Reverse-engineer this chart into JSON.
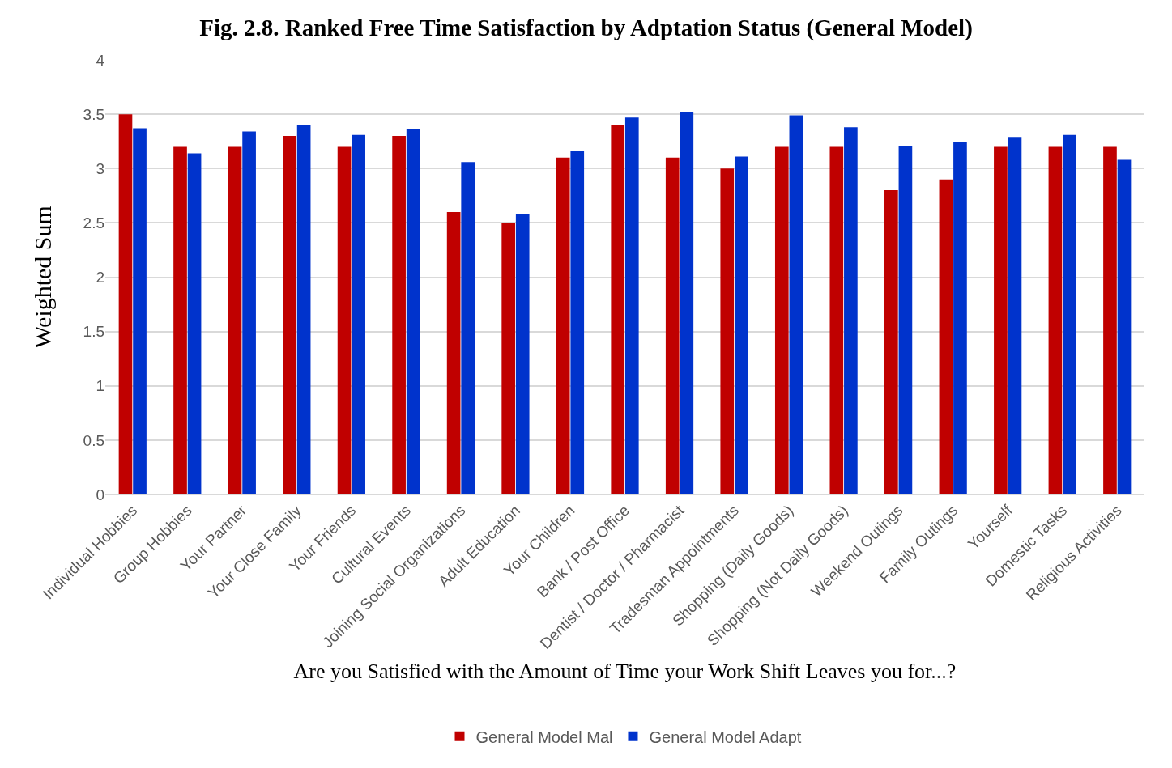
{
  "chart_data": {
    "type": "bar",
    "title": "Fig. 2.8. Ranked Free Time Satisfaction by Adptation Status (General Model)",
    "xlabel": "Are you Satisfied with the Amount of Time your Work Shift Leaves you for...?",
    "ylabel": "Weighted Sum",
    "categories": [
      "Individual Hobbies",
      "Group Hobbies",
      "Your Partner",
      "Your Close Family",
      "Your Friends",
      "Cultural Events",
      "Joining Social Organizations",
      "Adult Education",
      "Your Children",
      "Bank / Post Office",
      "Dentist / Doctor / Pharmacist",
      "Tradesman Appointments",
      "Shopping (Daily Goods)",
      "Shopping (Not Daily Goods)",
      "Weekend Outings",
      "Family Outings",
      "Yourself",
      "Domestic Tasks",
      "Religious Activities"
    ],
    "series": [
      {
        "name": "General Model Mal",
        "color": "#c00000",
        "values": [
          3.5,
          3.2,
          3.2,
          3.3,
          3.2,
          3.3,
          2.6,
          2.5,
          3.1,
          3.4,
          3.1,
          3.0,
          3.2,
          3.2,
          2.8,
          2.9,
          3.2,
          3.2,
          3.2
        ]
      },
      {
        "name": "General Model Adapt",
        "color": "#0033cc",
        "values": [
          3.37,
          3.14,
          3.34,
          3.4,
          3.31,
          3.36,
          3.06,
          2.58,
          3.16,
          3.47,
          3.52,
          3.11,
          3.49,
          3.38,
          3.21,
          3.24,
          3.29,
          3.31,
          3.08
        ]
      }
    ],
    "ylim": [
      0,
      4
    ],
    "yticks": [
      0,
      0.5,
      1,
      1.5,
      2,
      2.5,
      3,
      3.5,
      4
    ],
    "grid": "y",
    "legend": "bottom"
  }
}
